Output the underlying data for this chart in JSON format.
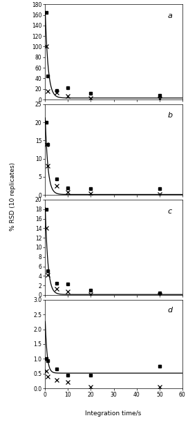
{
  "panels": [
    {
      "label": "a",
      "ylim": [
        0,
        180
      ],
      "yticks": [
        0,
        20,
        40,
        60,
        80,
        100,
        120,
        140,
        160,
        180
      ],
      "square_x": [
        0.5,
        1,
        5,
        10,
        20,
        50
      ],
      "square_y": [
        165,
        44,
        17,
        22,
        12,
        8
      ],
      "cross_x": [
        0.5,
        1,
        5,
        10,
        20,
        50
      ],
      "cross_y": [
        100,
        16,
        13,
        7,
        3,
        2
      ],
      "curve_a": 170,
      "curve_b": 0.8,
      "curve_c": 3
    },
    {
      "label": "b",
      "ylim": [
        0,
        25
      ],
      "yticks": [
        0,
        5,
        10,
        15,
        20,
        25
      ],
      "square_x": [
        0.5,
        1,
        5,
        10,
        20,
        50
      ],
      "square_y": [
        20,
        14,
        4.5,
        2.0,
        1.8,
        1.7
      ],
      "cross_x": [
        0.5,
        1,
        5,
        10,
        20,
        50
      ],
      "cross_y": [
        14,
        8,
        2.5,
        0.8,
        0.4,
        0.3
      ],
      "curve_a": 22,
      "curve_b": 0.85,
      "curve_c": 0.15
    },
    {
      "label": "c",
      "ylim": [
        0,
        20
      ],
      "yticks": [
        0,
        2,
        4,
        6,
        8,
        10,
        12,
        14,
        16,
        18,
        20
      ],
      "square_x": [
        0.5,
        1,
        5,
        10,
        20,
        50
      ],
      "square_y": [
        18,
        5,
        2.5,
        2.3,
        1.0,
        0.4
      ],
      "cross_x": [
        0.5,
        1,
        5,
        10,
        20,
        50
      ],
      "cross_y": [
        14,
        4.2,
        1.3,
        0.7,
        0.2,
        0.0
      ],
      "curve_a": 19,
      "curve_b": 0.85,
      "curve_c": 0.1
    },
    {
      "label": "d",
      "ylim": [
        0,
        3
      ],
      "yticks": [
        0,
        0.5,
        1.0,
        1.5,
        2.0,
        2.5,
        3.0
      ],
      "square_x": [
        0.5,
        1,
        5,
        10,
        20,
        50
      ],
      "square_y": [
        1.0,
        0.95,
        0.65,
        0.45,
        0.45,
        0.75
      ],
      "cross_x": [
        0.5,
        1,
        5,
        10,
        20,
        50
      ],
      "cross_y": [
        0.6,
        0.4,
        0.28,
        0.22,
        0.05,
        0.05
      ],
      "curve_a": 1.85,
      "curve_b": 1.2,
      "curve_c": 0.52
    }
  ],
  "xlabel": "Integration time/s",
  "ylabel": "% RSD (10 replicates)",
  "xlim": [
    0,
    60
  ],
  "xticks": [
    0,
    10,
    20,
    30,
    40,
    50,
    60
  ],
  "bg_color": "#ffffff",
  "line_color": "#000000",
  "marker_square_color": "#000000",
  "marker_cross_color": "#000000"
}
